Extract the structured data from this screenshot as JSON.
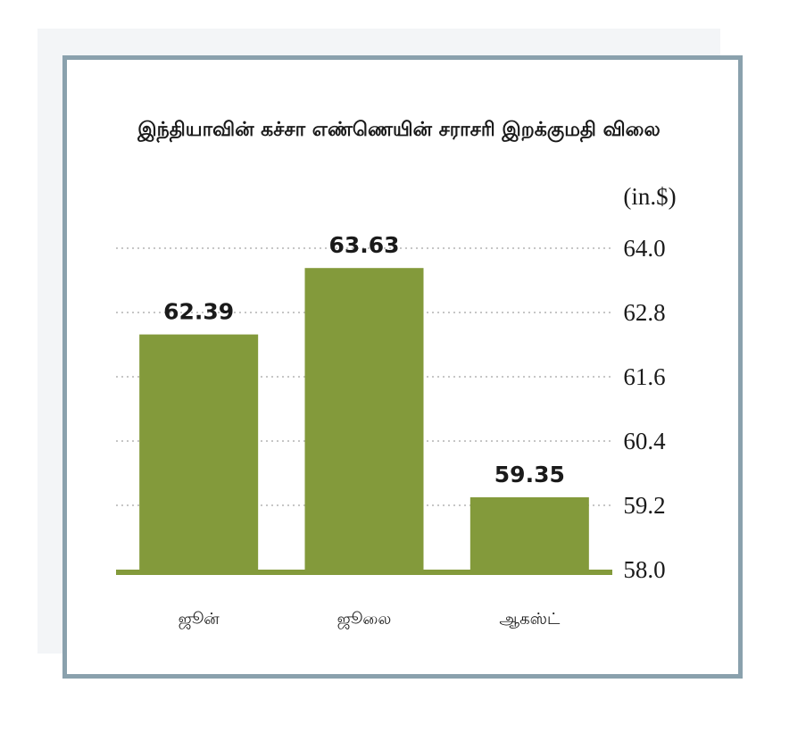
{
  "chart_data": {
    "type": "bar",
    "title": "இந்தியாவின் கச்சா எண்ணெயின் சராசரி இறக்குமதி விலை",
    "unit_label": "(in.$)",
    "categories": [
      "ஜூன்",
      "ஜூலை",
      "ஆகஸ்ட்"
    ],
    "values": [
      62.39,
      63.63,
      59.35
    ],
    "value_labels": [
      "62.39",
      "63.63",
      "59.35"
    ],
    "y_ticks": [
      "64.0",
      "62.8",
      "61.6",
      "60.4",
      "59.2",
      "58.0"
    ],
    "ylim": [
      58.0,
      64.0
    ],
    "grid": true,
    "y_axis_side": "right",
    "bar_color": "#839a3b"
  }
}
